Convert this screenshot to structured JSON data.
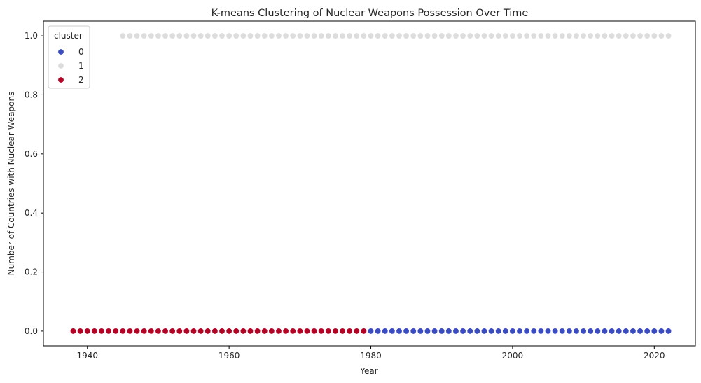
{
  "chart_data": {
    "type": "scatter",
    "title": "K-means Clustering of Nuclear Weapons Possession Over Time",
    "xlabel": "Year",
    "ylabel": "Number of Countries with Nuclear Weapons",
    "xlim": [
      1933.8,
      2025.8
    ],
    "ylim": [
      -0.05,
      1.05
    ],
    "xticks": [
      1940,
      1960,
      1980,
      2000,
      2020
    ],
    "yticks": [
      0.0,
      0.2,
      0.4,
      0.6,
      0.8,
      1.0
    ],
    "xtick_labels": [
      "1940",
      "1960",
      "1980",
      "2000",
      "2020"
    ],
    "ytick_labels": [
      "0.0",
      "0.2",
      "0.4",
      "0.6",
      "0.8",
      "1.0"
    ],
    "grid": false,
    "legend": {
      "title": "cluster",
      "placement": "upper-left"
    },
    "series": [
      {
        "name": "0",
        "color": "#3b4cc0",
        "x_range": [
          1980,
          2022
        ],
        "y": 0.0
      },
      {
        "name": "1",
        "color": "#dddddd",
        "x_range": [
          1945,
          2022
        ],
        "y": 1.0
      },
      {
        "name": "2",
        "color": "#b40426",
        "x_range": [
          1938,
          1979
        ],
        "y": 0.0
      }
    ]
  }
}
